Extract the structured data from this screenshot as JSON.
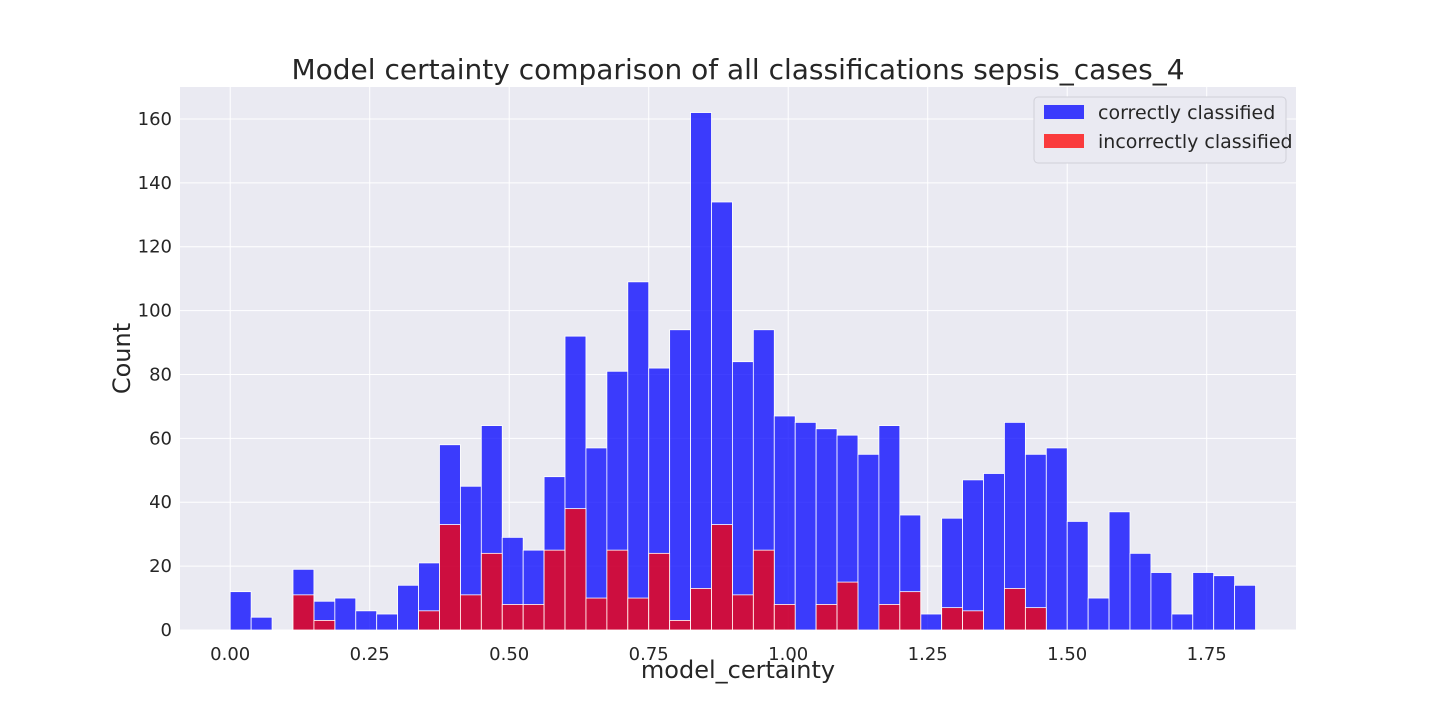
{
  "chart_data": {
    "type": "bar",
    "title": "Model certainty comparison of all classifications sepsis_cases_4",
    "xlabel": "model_certainty",
    "ylabel": "Count",
    "xlim": [
      -0.09,
      1.91
    ],
    "ylim": [
      0,
      170
    ],
    "xticks": [
      0.0,
      0.25,
      0.5,
      0.75,
      1.0,
      1.25,
      1.5,
      1.75
    ],
    "xtick_labels": [
      "0.00",
      "0.25",
      "0.50",
      "0.75",
      "1.00",
      "1.25",
      "1.50",
      "1.75"
    ],
    "yticks": [
      0,
      20,
      40,
      60,
      80,
      100,
      120,
      140,
      160
    ],
    "ytick_labels": [
      "0",
      "20",
      "40",
      "60",
      "80",
      "100",
      "120",
      "140",
      "160"
    ],
    "grid": true,
    "legend_position": "top-right",
    "bin_start": 0.0,
    "bin_width": 0.0375,
    "series": [
      {
        "name": "correctly classified",
        "color": "#0000ff",
        "values": [
          12,
          4,
          0,
          19,
          9,
          10,
          6,
          5,
          14,
          21,
          58,
          45,
          64,
          29,
          25,
          48,
          92,
          57,
          81,
          109,
          82,
          94,
          162,
          134,
          84,
          94,
          67,
          65,
          63,
          61,
          55,
          64,
          36,
          5,
          35,
          47,
          49,
          65,
          55,
          57,
          34,
          10,
          37,
          24,
          18,
          5,
          18,
          17,
          14
        ]
      },
      {
        "name": "incorrectly classified",
        "color": "#ff0000",
        "values": [
          0,
          0,
          0,
          11,
          3,
          0,
          0,
          0,
          0,
          6,
          33,
          11,
          24,
          8,
          8,
          25,
          38,
          10,
          25,
          10,
          24,
          3,
          13,
          33,
          11,
          25,
          8,
          0,
          8,
          15,
          0,
          8,
          12,
          0,
          7,
          6,
          0,
          13,
          7,
          0,
          0,
          0,
          0,
          0,
          0,
          0,
          0,
          0,
          0
        ]
      }
    ]
  }
}
